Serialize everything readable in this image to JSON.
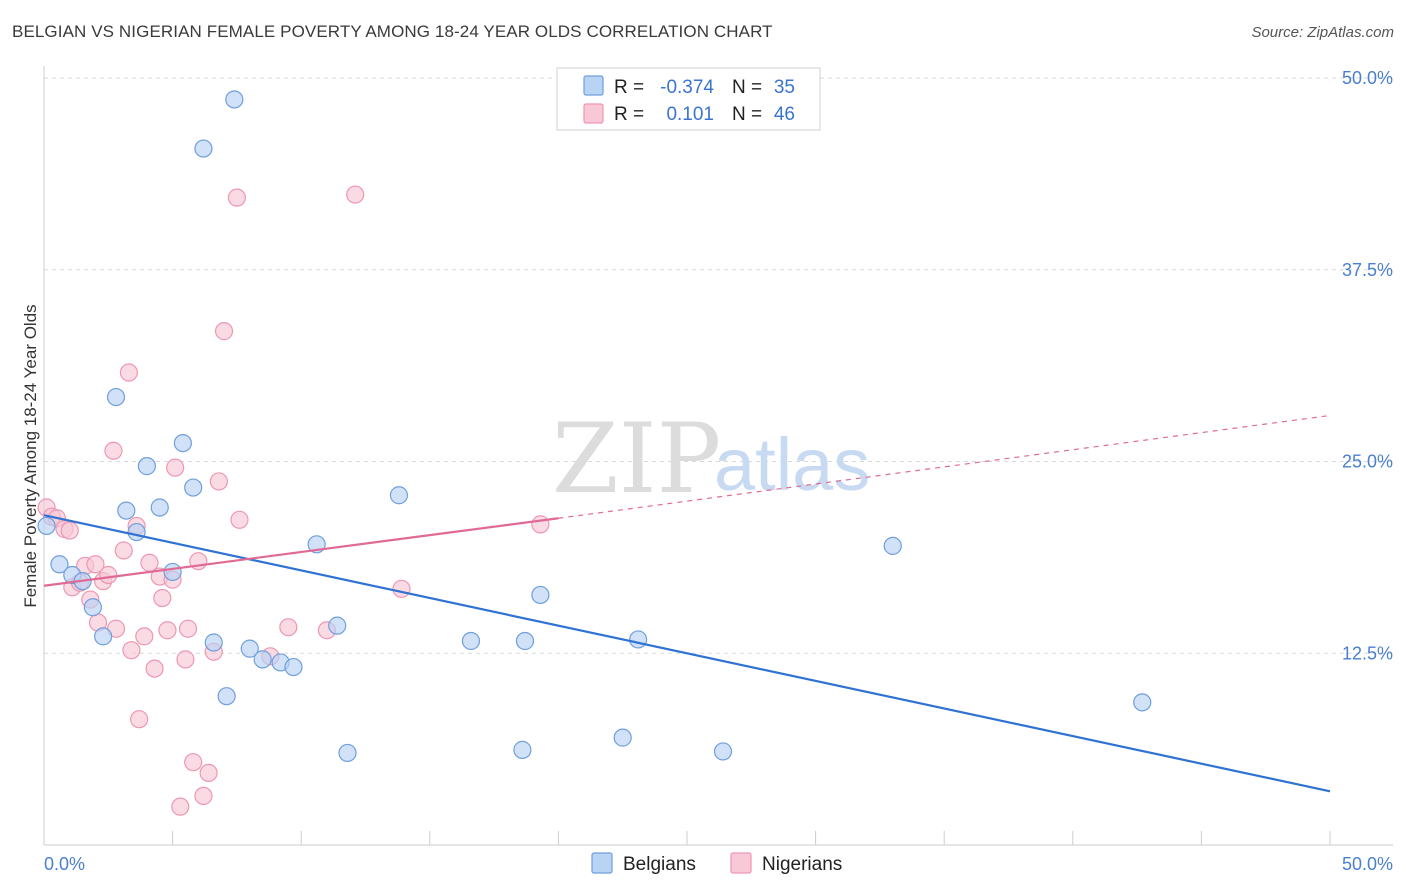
{
  "header": {
    "title": "BELGIAN VS NIGERIAN FEMALE POVERTY AMONG 18-24 YEAR OLDS CORRELATION CHART",
    "source": "Source: ZipAtlas.com"
  },
  "watermark": {
    "zip": "ZIP",
    "atlas": "atlas"
  },
  "legend": {
    "rows": [
      {
        "r_label": "R =",
        "r_value": "-0.374",
        "n_label": "N =",
        "n_value": "35"
      },
      {
        "r_label": "R =",
        "r_value": "0.101",
        "n_label": "N =",
        "n_value": "46"
      }
    ]
  },
  "bottom_legend": {
    "belgians": "Belgians",
    "nigerians": "Nigerians"
  },
  "colors": {
    "belgian_fill": "#b9d3f4",
    "belgian_stroke": "#6f9fdc",
    "belgian_line": "#2f72d4",
    "nigerian_fill": "#f8c8d6",
    "nigerian_stroke": "#ee97b3",
    "nigerian_line": "#e06a95",
    "grid": "#d9d9d9",
    "tick_label": "#4a7fd0"
  },
  "chart_data": {
    "type": "scatter",
    "title": "BELGIAN VS NIGERIAN FEMALE POVERTY AMONG 18-24 YEAR OLDS CORRELATION CHART",
    "xlabel": "",
    "ylabel": "Female Poverty Among 18-24 Year Olds",
    "xlim": [
      0,
      50
    ],
    "ylim": [
      0,
      50
    ],
    "x_tick_labels": [
      "0.0%",
      "50.0%"
    ],
    "y_tick_labels": [
      "12.5%",
      "25.0%",
      "37.5%",
      "50.0%"
    ],
    "y_ticks": [
      12.5,
      25.0,
      37.5,
      50.0
    ],
    "grid": true,
    "legend_position": "top-center",
    "series": [
      {
        "name": "Belgians",
        "r": -0.374,
        "n": 35,
        "trend": {
          "x": [
            0,
            50
          ],
          "y": [
            21.5,
            3.5
          ],
          "style": "solid"
        },
        "points": [
          [
            0.1,
            20.8
          ],
          [
            0.6,
            18.3
          ],
          [
            1.1,
            17.6
          ],
          [
            1.5,
            17.2
          ],
          [
            1.9,
            15.5
          ],
          [
            2.3,
            13.6
          ],
          [
            2.8,
            29.2
          ],
          [
            3.2,
            21.8
          ],
          [
            3.6,
            20.4
          ],
          [
            4.0,
            24.7
          ],
          [
            4.5,
            22.0
          ],
          [
            5.0,
            17.8
          ],
          [
            5.4,
            26.2
          ],
          [
            5.8,
            23.3
          ],
          [
            6.2,
            45.4
          ],
          [
            6.6,
            13.2
          ],
          [
            7.1,
            9.7
          ],
          [
            7.4,
            48.6
          ],
          [
            8.0,
            12.8
          ],
          [
            8.5,
            12.1
          ],
          [
            9.2,
            11.9
          ],
          [
            9.7,
            11.6
          ],
          [
            10.6,
            19.6
          ],
          [
            11.4,
            14.3
          ],
          [
            11.8,
            6.0
          ],
          [
            13.8,
            22.8
          ],
          [
            16.6,
            13.3
          ],
          [
            18.6,
            6.2
          ],
          [
            18.7,
            13.3
          ],
          [
            19.3,
            16.3
          ],
          [
            22.5,
            7.0
          ],
          [
            23.1,
            13.4
          ],
          [
            26.4,
            6.1
          ],
          [
            33.0,
            19.5
          ],
          [
            42.7,
            9.3
          ]
        ]
      },
      {
        "name": "Nigerians",
        "r": 0.101,
        "n": 46,
        "trend": {
          "x": [
            0,
            20
          ],
          "y": [
            16.9,
            21.3
          ],
          "style": "solid",
          "extended": {
            "x": [
              20,
              50
            ],
            "y": [
              21.3,
              28.0
            ],
            "style": "dashed"
          }
        },
        "points": [
          [
            0.1,
            22.0
          ],
          [
            0.3,
            21.4
          ],
          [
            0.5,
            21.3
          ],
          [
            0.8,
            20.6
          ],
          [
            1.0,
            20.5
          ],
          [
            1.1,
            16.8
          ],
          [
            1.4,
            17.1
          ],
          [
            1.6,
            18.2
          ],
          [
            1.8,
            16.0
          ],
          [
            2.0,
            18.3
          ],
          [
            2.1,
            14.5
          ],
          [
            2.3,
            17.2
          ],
          [
            2.5,
            17.6
          ],
          [
            2.7,
            25.7
          ],
          [
            2.8,
            14.1
          ],
          [
            3.1,
            19.2
          ],
          [
            3.3,
            30.8
          ],
          [
            3.4,
            12.7
          ],
          [
            3.6,
            20.8
          ],
          [
            3.7,
            8.2
          ],
          [
            3.9,
            13.6
          ],
          [
            4.1,
            18.4
          ],
          [
            4.3,
            11.5
          ],
          [
            4.5,
            17.5
          ],
          [
            4.6,
            16.1
          ],
          [
            4.8,
            14.0
          ],
          [
            5.0,
            17.3
          ],
          [
            5.1,
            24.6
          ],
          [
            5.3,
            2.5
          ],
          [
            5.5,
            12.1
          ],
          [
            5.6,
            14.1
          ],
          [
            5.8,
            5.4
          ],
          [
            6.0,
            18.5
          ],
          [
            6.2,
            3.2
          ],
          [
            6.4,
            4.7
          ],
          [
            6.6,
            12.6
          ],
          [
            6.8,
            23.7
          ],
          [
            7.0,
            33.5
          ],
          [
            7.5,
            42.2
          ],
          [
            7.6,
            21.2
          ],
          [
            8.8,
            12.3
          ],
          [
            9.5,
            14.2
          ],
          [
            11.0,
            14.0
          ],
          [
            12.1,
            42.4
          ],
          [
            13.9,
            16.7
          ],
          [
            19.3,
            20.9
          ]
        ]
      }
    ]
  }
}
